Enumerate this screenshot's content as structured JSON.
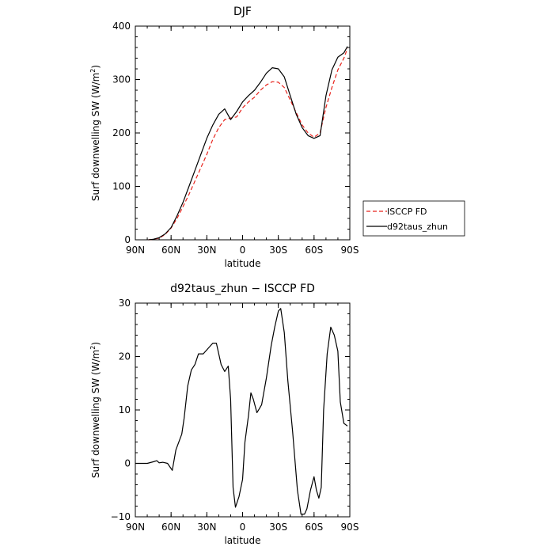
{
  "chart_data": [
    {
      "type": "line",
      "title": "DJF",
      "xlabel": "latitude",
      "ylabel": "Surf downwelling SW (W/m",
      "ylabel_sup": "2",
      "ylabel_close": ")",
      "xlim": [
        -90,
        90
      ],
      "ylim": [
        0,
        400
      ],
      "xticks": [
        -90,
        -60,
        -30,
        0,
        30,
        60,
        90
      ],
      "xtick_labels": [
        "90N",
        "60N",
        "30N",
        "0",
        "30S",
        "60S",
        "90S"
      ],
      "yticks": [
        0,
        100,
        200,
        300,
        400
      ],
      "ytick_labels": [
        "0",
        "100",
        "200",
        "300",
        "400"
      ],
      "legend_position": "right",
      "series": [
        {
          "name": "ISCCP FD",
          "color": "#e8231c",
          "dash": "dashed",
          "x": [
            -79,
            -75,
            -70,
            -65,
            -60,
            -55,
            -50,
            -45,
            -40,
            -35,
            -30,
            -25,
            -20,
            -15,
            -10,
            -5,
            0,
            5,
            10,
            15,
            20,
            25,
            30,
            35,
            40,
            45,
            50,
            55,
            60,
            65,
            70,
            75,
            80,
            85,
            88
          ],
          "y": [
            0,
            1,
            3,
            10,
            22,
            40,
            62,
            85,
            110,
            135,
            160,
            188,
            210,
            225,
            228,
            230,
            247,
            258,
            267,
            280,
            290,
            296,
            295,
            285,
            262,
            238,
            215,
            200,
            192,
            200,
            248,
            285,
            318,
            340,
            358
          ]
        },
        {
          "name": "d92taus_zhun",
          "color": "#000000",
          "dash": "solid",
          "x": [
            -79,
            -75,
            -70,
            -65,
            -60,
            -55,
            -50,
            -45,
            -40,
            -35,
            -30,
            -25,
            -20,
            -15,
            -10,
            -5,
            0,
            5,
            10,
            15,
            20,
            25,
            30,
            35,
            40,
            45,
            50,
            55,
            60,
            65,
            70,
            75,
            80,
            85,
            88
          ],
          "y": [
            0,
            1,
            4,
            11,
            23,
            45,
            70,
            100,
            130,
            160,
            190,
            215,
            235,
            245,
            225,
            240,
            258,
            270,
            280,
            295,
            312,
            322,
            320,
            305,
            270,
            235,
            210,
            195,
            190,
            195,
            270,
            318,
            342,
            350,
            362
          ]
        }
      ]
    },
    {
      "type": "line",
      "title": "d92taus_zhun − ISCCP FD",
      "xlabel": "latitude",
      "ylabel": "Surf downwelling SW (W/m",
      "ylabel_sup": "2",
      "ylabel_close": ")",
      "xlim": [
        -90,
        90
      ],
      "ylim": [
        -10,
        30
      ],
      "xticks": [
        -90,
        -60,
        -30,
        0,
        30,
        60,
        90
      ],
      "xtick_labels": [
        "90N",
        "60N",
        "30N",
        "0",
        "30S",
        "60S",
        "90S"
      ],
      "yticks": [
        -10,
        0,
        10,
        20,
        30
      ],
      "ytick_labels": [
        "−10",
        "0",
        "10",
        "20",
        "30"
      ],
      "series": [
        {
          "name": "",
          "color": "#000000",
          "dash": "solid",
          "x": [
            -90,
            -85,
            -80,
            -75,
            -72,
            -70,
            -67,
            -63,
            -59,
            -56,
            -51,
            -49,
            -46,
            -43,
            -40,
            -37,
            -33,
            -29,
            -25,
            -22,
            -20,
            -18,
            -15,
            -12,
            -10,
            -8,
            -6,
            -3,
            0,
            2,
            5,
            7,
            9,
            12,
            14,
            16,
            20,
            24,
            27,
            30,
            32,
            35,
            38,
            42,
            46,
            49,
            52,
            54,
            57,
            60,
            62,
            64,
            66,
            68,
            71,
            74,
            77,
            80,
            82,
            85,
            88
          ],
          "y": [
            0,
            0,
            0,
            0.3,
            0.5,
            0.1,
            0.2,
            0,
            -1.3,
            2.5,
            5.5,
            8.5,
            14.5,
            17.5,
            18.5,
            20.5,
            20.5,
            21.5,
            22.5,
            22.5,
            20.5,
            18.5,
            17.2,
            18.2,
            12,
            -4.5,
            -8.2,
            -6.2,
            -3,
            4,
            9,
            13.2,
            12,
            9.5,
            10.2,
            11,
            16,
            22,
            25.5,
            28.5,
            29,
            24.5,
            15.5,
            6,
            -5,
            -9.5,
            -9.5,
            -8.5,
            -5,
            -2.5,
            -5,
            -6.5,
            -4.5,
            10,
            20.5,
            25.5,
            24,
            21,
            11.5,
            7.5,
            7
          ]
        }
      ]
    }
  ]
}
